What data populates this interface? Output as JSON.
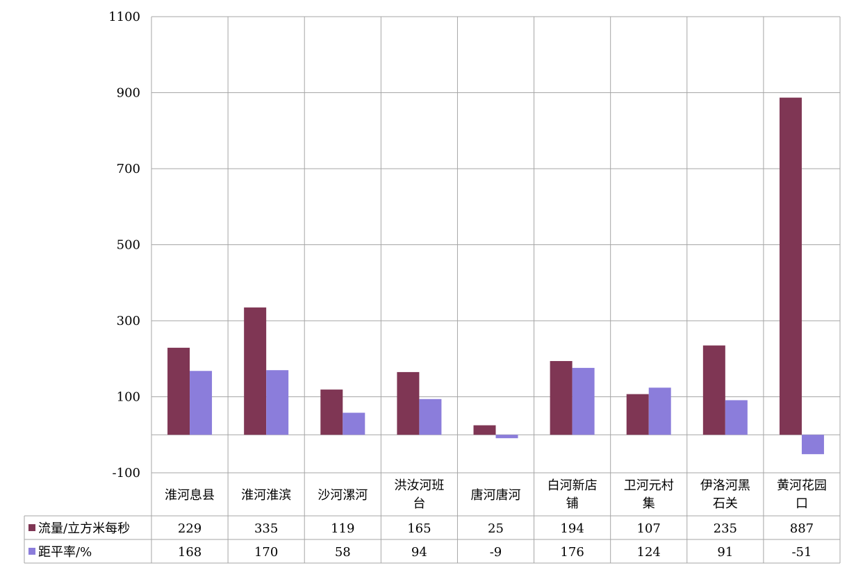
{
  "chart_data": {
    "type": "bar",
    "categories": [
      "淮河息县",
      "淮河淮滨",
      "沙河漯河",
      "洪汝河班台",
      "唐河唐河",
      "白河新店铺",
      "卫河元村集",
      "伊洛河黑石关",
      "黄河花园口"
    ],
    "series": [
      {
        "name": "流量/立方米每秒",
        "values": [
          229,
          335,
          119,
          165,
          25,
          194,
          107,
          235,
          887
        ],
        "color": "#7f3654"
      },
      {
        "name": "距平率/%",
        "values": [
          168,
          170,
          58,
          94,
          -9,
          176,
          124,
          91,
          -51
        ],
        "color": "#8b7ddb"
      }
    ],
    "y_ticks": [
      "1100",
      "900",
      "700",
      "500",
      "300",
      "100",
      "-100"
    ],
    "ylim": [
      -100,
      1100
    ],
    "grid": true,
    "legend": "data-table-left"
  }
}
